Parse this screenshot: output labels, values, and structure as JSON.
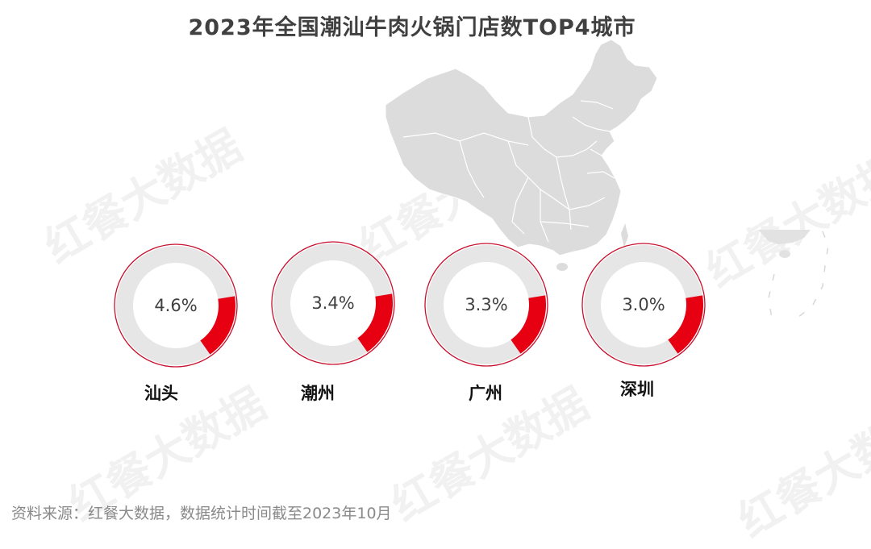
{
  "title": "2023年全国潮汕牛肉火锅门店数TOP4城市",
  "watermark": "红餐大数据",
  "source": "资料来源：红餐大数据，数据统计时间截至2023年10月",
  "colors": {
    "highlight": "#e60012",
    "ring": "#e6e6e6",
    "outline": "#c8102e",
    "map": "#dcdcdc"
  },
  "cities": [
    {
      "name": "汕头",
      "value_label": "4.6%"
    },
    {
      "name": "潮州",
      "value_label": "3.4%"
    },
    {
      "name": "广州",
      "value_label": "3.3%"
    },
    {
      "name": "深圳",
      "value_label": "3.0%"
    }
  ],
  "chart_data": {
    "type": "pie",
    "title": "2023年全国潮汕牛肉火锅门店数TOP4城市",
    "categories": [
      "汕头",
      "潮州",
      "广州",
      "深圳"
    ],
    "values": [
      4.6,
      3.4,
      3.3,
      3.0
    ],
    "unit": "%",
    "xlabel": "",
    "ylabel": "",
    "legend": "none",
    "annotations": [
      "资料来源：红餐大数据，数据统计时间截至2023年10月"
    ]
  }
}
